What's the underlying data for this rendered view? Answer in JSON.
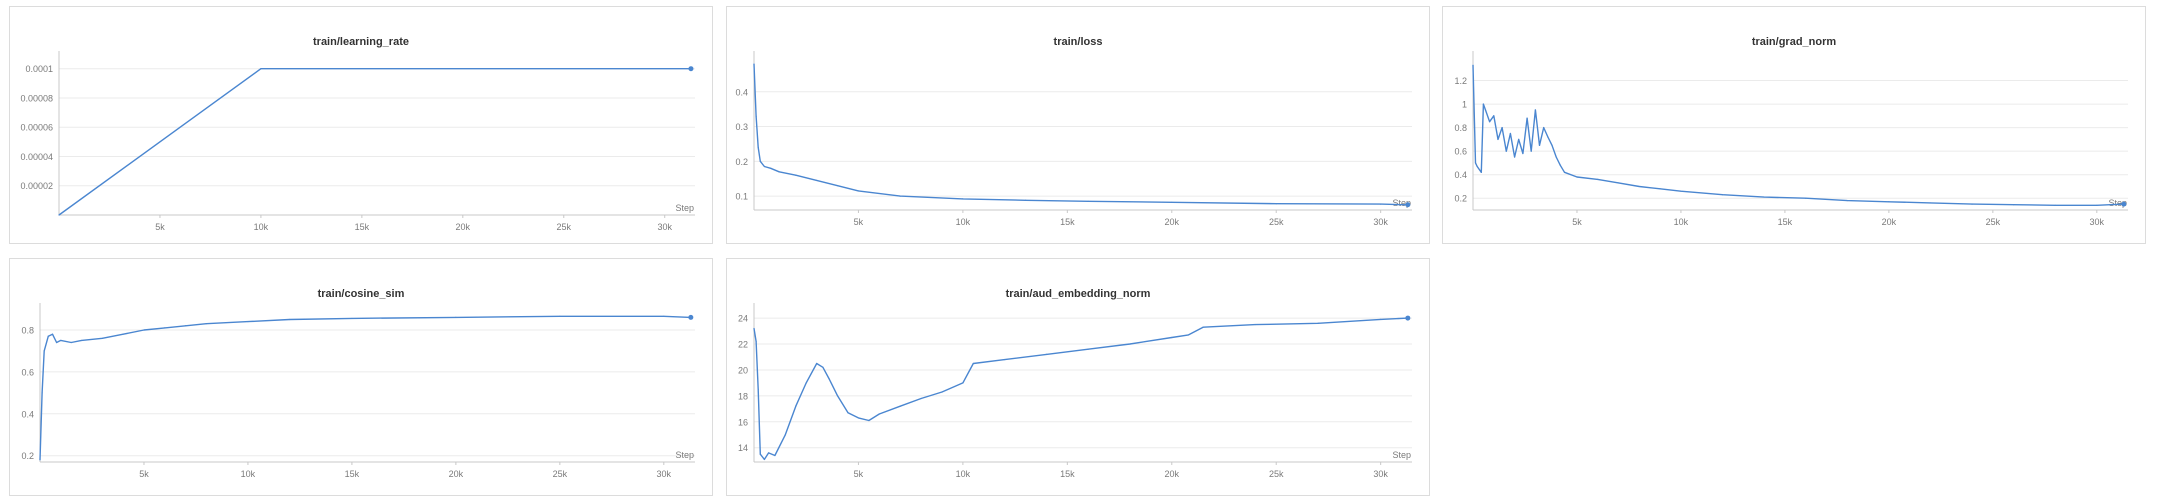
{
  "colors": {
    "line": "#4a86d0",
    "grid": "#ebebeb",
    "axis": "#c8c8c8",
    "tick": "#7a7a7a"
  },
  "chart_data": [
    {
      "type": "line",
      "title": "train/learning_rate",
      "xlabel": "Step",
      "ylabel": "",
      "xlim": [
        0,
        31500
      ],
      "ylim": [
        0,
        0.000108
      ],
      "xticks": [
        5000,
        10000,
        15000,
        20000,
        25000,
        30000
      ],
      "xtick_labels": [
        "5k",
        "10k",
        "15k",
        "20k",
        "25k",
        "30k"
      ],
      "yticks": [
        2e-05,
        4e-05,
        6e-05,
        8e-05,
        0.0001
      ],
      "ytick_labels": [
        "0.00002",
        "0.00004",
        "0.00006",
        "0.00008",
        "0.0001"
      ],
      "grid": true,
      "series": [
        {
          "x": [
            0,
            10000,
            31300
          ],
          "y": [
            0,
            0.0001,
            0.0001
          ]
        }
      ]
    },
    {
      "type": "line",
      "title": "train/loss",
      "xlabel": "Step",
      "ylabel": "",
      "xlim": [
        0,
        31500
      ],
      "ylim": [
        0.06,
        0.5
      ],
      "xticks": [
        5000,
        10000,
        15000,
        20000,
        25000,
        30000
      ],
      "xtick_labels": [
        "5k",
        "10k",
        "15k",
        "20k",
        "25k",
        "30k"
      ],
      "yticks": [
        0.1,
        0.2,
        0.3,
        0.4
      ],
      "ytick_labels": [
        "0.1",
        "0.2",
        "0.3",
        "0.4"
      ],
      "grid": true,
      "series": [
        {
          "x": [
            0,
            100,
            200,
            300,
            500,
            800,
            1200,
            2000,
            3000,
            4000,
            5000,
            7000,
            10000,
            13000,
            16000,
            20000,
            25000,
            30000,
            31300
          ],
          "y": [
            0.48,
            0.33,
            0.24,
            0.2,
            0.185,
            0.18,
            0.17,
            0.16,
            0.145,
            0.13,
            0.115,
            0.1,
            0.092,
            0.088,
            0.085,
            0.082,
            0.078,
            0.077,
            0.075
          ]
        }
      ]
    },
    {
      "type": "line",
      "title": "train/grad_norm",
      "xlabel": "Step",
      "ylabel": "",
      "xlim": [
        0,
        31500
      ],
      "ylim": [
        0.1,
        1.4
      ],
      "xticks": [
        5000,
        10000,
        15000,
        20000,
        25000,
        30000
      ],
      "xtick_labels": [
        "5k",
        "10k",
        "15k",
        "20k",
        "25k",
        "30k"
      ],
      "yticks": [
        0.2,
        0.4,
        0.6,
        0.8,
        1.0,
        1.2
      ],
      "ytick_labels": [
        "0.2",
        "0.4",
        "0.6",
        "0.8",
        "1",
        "1.2"
      ],
      "grid": true,
      "series": [
        {
          "x": [
            0,
            120,
            200,
            400,
            500,
            600,
            800,
            1000,
            1200,
            1400,
            1600,
            1800,
            2000,
            2200,
            2400,
            2600,
            2800,
            3000,
            3200,
            3400,
            3600,
            3800,
            4000,
            4200,
            4400,
            5000,
            6000,
            7000,
            8000,
            9000,
            10000,
            12000,
            14000,
            16000,
            18000,
            20000,
            22000,
            24000,
            26000,
            28000,
            30000,
            31300
          ],
          "y": [
            1.33,
            0.5,
            0.47,
            0.42,
            1.0,
            0.95,
            0.85,
            0.9,
            0.7,
            0.8,
            0.6,
            0.75,
            0.55,
            0.7,
            0.58,
            0.88,
            0.6,
            0.95,
            0.65,
            0.8,
            0.72,
            0.65,
            0.55,
            0.48,
            0.42,
            0.38,
            0.36,
            0.33,
            0.3,
            0.28,
            0.26,
            0.23,
            0.21,
            0.2,
            0.18,
            0.17,
            0.16,
            0.15,
            0.145,
            0.14,
            0.14,
            0.15
          ]
        }
      ]
    },
    {
      "type": "line",
      "title": "train/cosine_sim",
      "xlabel": "Step",
      "ylabel": "",
      "xlim": [
        0,
        31500
      ],
      "ylim": [
        0.17,
        0.9
      ],
      "xticks": [
        5000,
        10000,
        15000,
        20000,
        25000,
        30000
      ],
      "xtick_labels": [
        "5k",
        "10k",
        "15k",
        "20k",
        "25k",
        "30k"
      ],
      "yticks": [
        0.2,
        0.4,
        0.6,
        0.8
      ],
      "ytick_labels": [
        "0.2",
        "0.4",
        "0.6",
        "0.8"
      ],
      "grid": true,
      "series": [
        {
          "x": [
            0,
            100,
            200,
            400,
            600,
            800,
            1000,
            1500,
            2000,
            3000,
            4000,
            5000,
            6000,
            7000,
            8000,
            10000,
            12000,
            15000,
            20000,
            25000,
            30000,
            31300
          ],
          "y": [
            0.18,
            0.5,
            0.7,
            0.77,
            0.78,
            0.74,
            0.75,
            0.74,
            0.75,
            0.76,
            0.78,
            0.8,
            0.81,
            0.82,
            0.83,
            0.84,
            0.85,
            0.855,
            0.86,
            0.865,
            0.865,
            0.86
          ]
        }
      ]
    },
    {
      "type": "line",
      "title": "train/aud_embedding_norm",
      "xlabel": "Step",
      "ylabel": "",
      "xlim": [
        0,
        31500
      ],
      "ylim": [
        12.9,
        24.7
      ],
      "xticks": [
        5000,
        10000,
        15000,
        20000,
        25000,
        30000
      ],
      "xtick_labels": [
        "5k",
        "10k",
        "15k",
        "20k",
        "25k",
        "30k"
      ],
      "yticks": [
        14,
        16,
        18,
        20,
        22,
        24
      ],
      "ytick_labels": [
        "14",
        "16",
        "18",
        "20",
        "22",
        "24"
      ],
      "grid": true,
      "series": [
        {
          "x": [
            0,
            100,
            200,
            300,
            500,
            700,
            1000,
            1500,
            2000,
            2500,
            3000,
            3300,
            3600,
            4000,
            4500,
            5000,
            5500,
            6000,
            7000,
            8000,
            9000,
            10000,
            10500,
            12000,
            14000,
            16000,
            18000,
            20000,
            20800,
            21500,
            24000,
            27000,
            30000,
            31300
          ],
          "y": [
            23.2,
            22.2,
            18.5,
            13.5,
            13.1,
            13.6,
            13.4,
            15.0,
            17.2,
            19.0,
            20.5,
            20.2,
            19.3,
            18.0,
            16.7,
            16.3,
            16.1,
            16.6,
            17.2,
            17.8,
            18.3,
            19.0,
            20.5,
            20.8,
            21.2,
            21.6,
            22.0,
            22.5,
            22.7,
            23.3,
            23.5,
            23.6,
            23.9,
            24.0
          ]
        }
      ]
    }
  ]
}
